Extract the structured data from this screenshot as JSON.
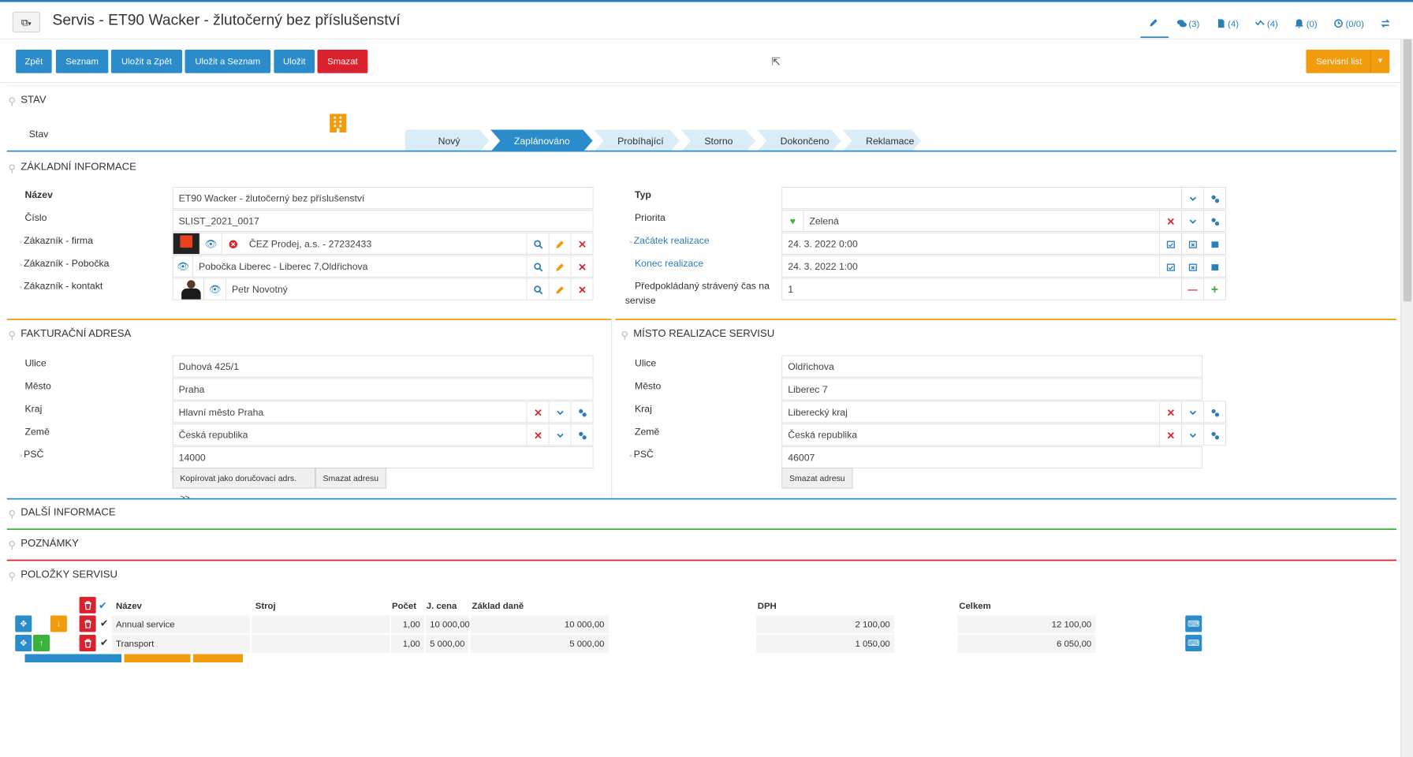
{
  "header": {
    "title": "Servis - ET90 Wacker - žlutočerný bez příslušenství",
    "tabs": [
      {
        "label": "",
        "icon": "pencil-icon"
      },
      {
        "label": "(3)",
        "icon": "comments-icon"
      },
      {
        "label": "(4)",
        "icon": "document-icon"
      },
      {
        "label": "(4)",
        "icon": "timeline-icon"
      },
      {
        "label": "(0)",
        "icon": "bell-icon"
      },
      {
        "label": "(0/0)",
        "icon": "clock-icon"
      },
      {
        "label": "",
        "icon": "exchange-icon"
      }
    ]
  },
  "toolbar": {
    "back": "Zpět",
    "list": "Seznam",
    "save_back": "Uložit a Zpět",
    "save_list": "Uložit a Seznam",
    "save": "Uložit",
    "delete": "Smazat",
    "service_sheet": "Servisní list"
  },
  "stav": {
    "section": "STAV",
    "label": "Stav",
    "steps": [
      "Nový",
      "Zaplánováno",
      "Probíhající",
      "Storno",
      "Dokončeno",
      "Reklamace"
    ],
    "active": 1
  },
  "zakladni": {
    "section": "ZÁKLADNÍ INFORMACE",
    "nazev_label": "Název",
    "nazev": "ET90  Wacker - žlutočerný bez příslušenství",
    "cislo_label": "Číslo",
    "cislo": "SLIST_2021_0017",
    "firma_label": "Zákazník - firma",
    "firma": "ČEZ Prodej, a.s. - 27232433",
    "pobocka_label": "Zákazník - Pobočka",
    "pobocka": "Pobočka Liberec - Liberec 7,Oldřichova",
    "kontakt_label": "Zákazník - kontakt",
    "kontakt": "Petr Novotný",
    "typ_label": "Typ",
    "typ": "",
    "priorita_label": "Priorita",
    "priorita": "Zelená",
    "zacatek_label": "Začátek realizace",
    "zacatek": "24. 3. 2022 0:00",
    "konec_label": "Konec realizace",
    "konec": "24. 3. 2022 1:00",
    "cas_label_1": "Předpokládaný strávený čas na",
    "cas_label_2": "servise",
    "cas": "1"
  },
  "fakturacni": {
    "section": "FAKTURAČNÍ ADRESA",
    "ulice_label": "Ulice",
    "ulice": "Duhová 425/1",
    "mesto_label": "Město",
    "mesto": "Praha",
    "kraj_label": "Kraj",
    "kraj": "Hlavní město Praha",
    "zeme_label": "Země",
    "zeme": "Česká republika",
    "psc_label": "PSČ",
    "psc": "14000",
    "copy_btn": "Kopírovat jako doručovací adrs. >>",
    "delete_btn": "Smazat adresu"
  },
  "misto": {
    "section": "MÍSTO REALIZACE SERVISU",
    "ulice_label": "Ulice",
    "ulice": "Oldřichova",
    "mesto_label": "Město",
    "mesto": "Liberec 7",
    "kraj_label": "Kraj",
    "kraj": "Liberecký kraj",
    "zeme_label": "Země",
    "zeme": "Česká republika",
    "psc_label": "PSČ",
    "psc": "46007",
    "delete_btn": "Smazat adresu"
  },
  "dalsi": {
    "section": "DALŠÍ INFORMACE"
  },
  "poznamky": {
    "section": "POZNÁMKY"
  },
  "polozky": {
    "section": "POLOŽKY SERVISU",
    "columns": {
      "nazev": "Název",
      "stroj": "Stroj",
      "pocet": "Počet",
      "jcena": "J. cena",
      "zaklad": "Základ daně",
      "dph": "DPH",
      "celkem": "Celkem"
    },
    "rows": [
      {
        "nazev": "Annual service",
        "stroj": "",
        "pocet": "1,00",
        "jcena": "10 000,00",
        "zaklad": "10 000,00",
        "dph": "2 100,00",
        "celkem": "12 100,00"
      },
      {
        "nazev": "Transport",
        "stroj": "",
        "pocet": "1,00",
        "jcena": "5 000,00",
        "zaklad": "5 000,00",
        "dph": "1 050,00",
        "celkem": "6 050,00"
      }
    ]
  },
  "colors": {
    "blue": "#2a8ccb",
    "red": "#d9222e",
    "orange": "#f29b0c",
    "green": "#3bb33b"
  }
}
